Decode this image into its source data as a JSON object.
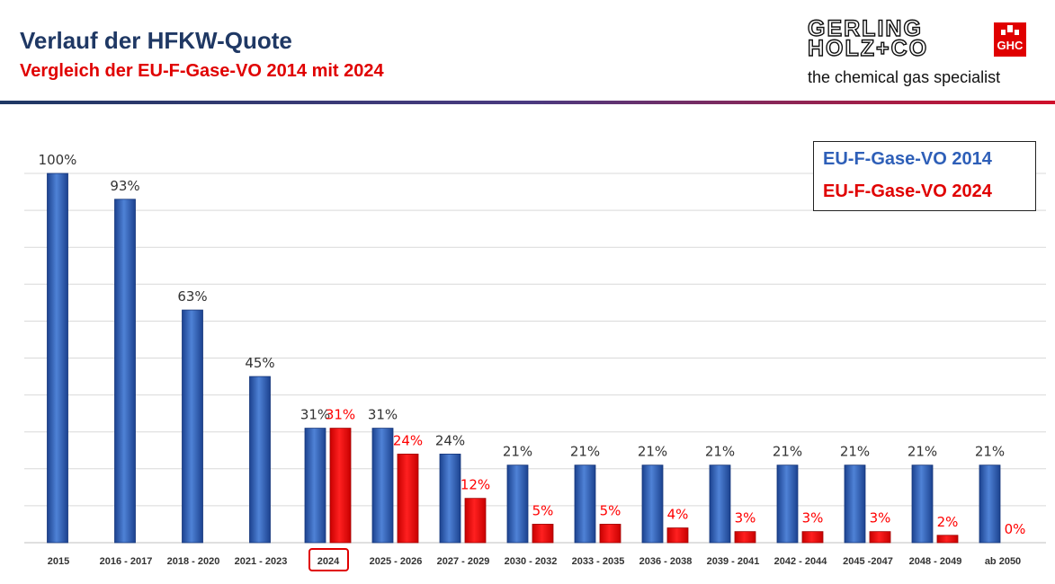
{
  "header": {
    "title": "Verlauf der HFKW-Quote",
    "subtitle": "Vergleich der EU-F-Gase-VO 2014 mit 2024"
  },
  "logo": {
    "line1": "GERLING",
    "line2": "HOLZ+CO",
    "mark": "GHC",
    "tagline": "the chemical gas specialist"
  },
  "colors": {
    "series_2014": "#2e5fb8",
    "series_2024": "#ff0000",
    "title": "#1f3864",
    "subtitle": "#e00000"
  },
  "chart_data": {
    "type": "bar",
    "title": "",
    "xlabel": "",
    "ylabel": "",
    "ylim": [
      0,
      100
    ],
    "grid": true,
    "legend_position": "top-right",
    "highlighted_category": "2024",
    "categories": [
      "2015",
      "2016 - 2017",
      "2018 - 2020",
      "2021 - 2023",
      "2024",
      "2025 - 2026",
      "2027 - 2029",
      "2030 - 2032",
      "2033 - 2035",
      "2036 - 2038",
      "2039 - 2041",
      "2042 - 2044",
      "2045  -2047",
      "2048 - 2049",
      "ab 2050"
    ],
    "series": [
      {
        "name": "EU-F-Gase-VO 2014",
        "values": [
          100,
          93,
          63,
          45,
          31,
          31,
          24,
          21,
          21,
          21,
          21,
          21,
          21,
          21,
          21
        ]
      },
      {
        "name": "EU-F-Gase-VO 2024",
        "values": [
          null,
          null,
          null,
          null,
          31,
          24,
          12,
          5,
          5,
          4,
          3,
          3,
          3,
          2,
          0
        ]
      }
    ],
    "data_labels": [
      [
        "100%",
        "93%",
        "63%",
        "45%",
        "31%",
        "31%",
        "24%",
        "21%",
        "21%",
        "21%",
        "21%",
        "21%",
        "21%",
        "21%",
        "21%"
      ],
      [
        null,
        null,
        null,
        null,
        "31%",
        "24%",
        "12%",
        "5%",
        "5%",
        "4%",
        "3%",
        "3%",
        "3%",
        "2%",
        "0%"
      ]
    ]
  }
}
